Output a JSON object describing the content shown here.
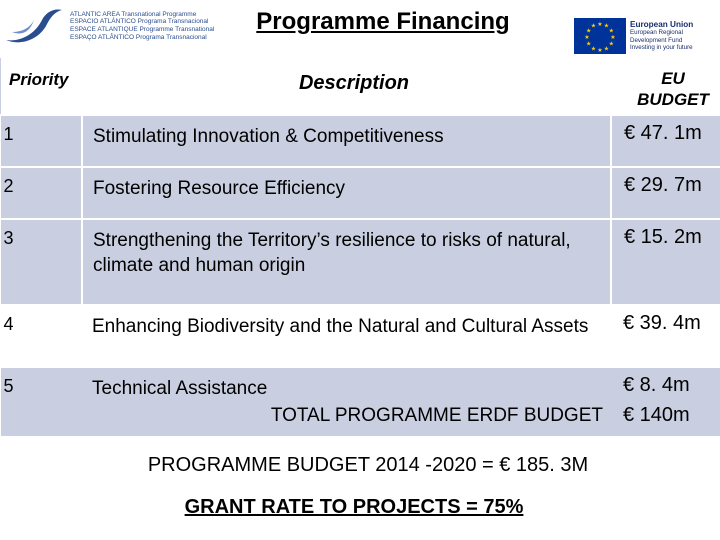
{
  "logos": {
    "left_lines": [
      "ATLANTIC AREA Transnational Programme",
      "ESPACIO ATLÁNTICO Programa Transnacional",
      "ESPACE ATLANTIQUE Programme Transnational",
      "ESPAÇO ATLÂNTICO Programa Transnacional"
    ],
    "left_icon": "atlantic-area-wave-icon",
    "eu_icon": "eu-flag-icon",
    "eu_lines": [
      "European Union",
      "European Regional",
      "Development Fund",
      "Investing in your future"
    ],
    "colors": {
      "atlantic_blue": "#2a4d8f",
      "eu_blue": "#003399",
      "eu_star": "#ffcc00",
      "table_shade": "#c9cfe0"
    }
  },
  "title": "Programme Financing",
  "table": {
    "headers": {
      "priority": "Priority",
      "description": "Description",
      "budget": "EU BUDGET"
    },
    "rows": [
      {
        "priority": "1",
        "description": "Stimulating Innovation & Competitiveness",
        "budget": "€ 47. 1m"
      },
      {
        "priority": "2",
        "description": "Fostering Resource Efficiency",
        "budget": "€ 29. 7m"
      },
      {
        "priority": "3",
        "description": "Strengthening the Territory’s resilience to risks of natural, climate and human origin",
        "budget": "€ 15. 2m"
      },
      {
        "priority": "4",
        "description": "Enhancing Biodiversity and the Natural and Cultural Assets",
        "budget": "€ 39. 4m"
      },
      {
        "priority": "5",
        "description": "Technical Assistance",
        "budget": "€ 8. 4m"
      }
    ],
    "total": {
      "label": "TOTAL PROGRAMME ERDF BUDGET",
      "value": "€ 140m"
    }
  },
  "footer": {
    "budget_line": "PROGRAMME BUDGET 2014 -2020 = € 185. 3M",
    "grant_line": "GRANT RATE TO PROJECTS = 75%"
  }
}
